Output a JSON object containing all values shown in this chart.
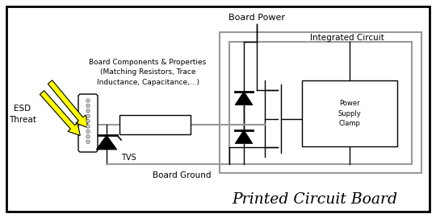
{
  "bg_color": "#ffffff",
  "dark": "#000000",
  "gray": "#999999",
  "title_text": "Printed Circuit Board",
  "board_power_text": "Board Power",
  "integrated_circuit_text": "Integrated Circuit",
  "board_components_text": "Board Components & Properties\n(Matching Resistors, Trace\nInductance, Capacitance,...)",
  "esd_threat_text": "ESD\nThreat",
  "tvs_text": "TVS",
  "board_ground_text": "Board Ground",
  "power_supply_clamp_text": "Power\nSupply\nClamp"
}
